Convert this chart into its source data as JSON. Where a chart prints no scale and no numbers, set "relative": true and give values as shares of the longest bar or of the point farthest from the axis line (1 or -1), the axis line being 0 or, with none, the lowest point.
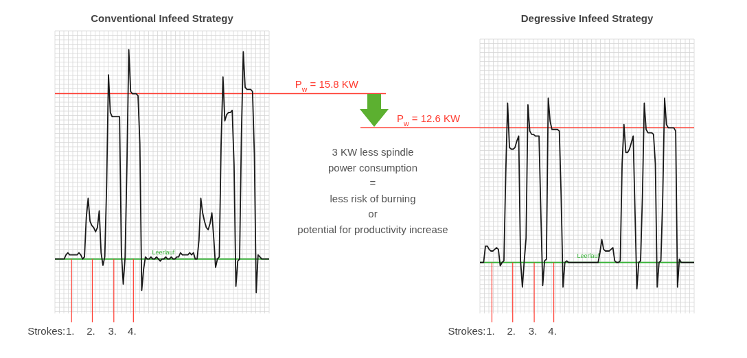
{
  "chart_data": [
    {
      "type": "line",
      "title": "Conventional Infeed Strategy",
      "relative": true,
      "tick_labels": false,
      "grid": true,
      "categories": [
        null,
        null,
        null,
        null,
        null,
        null,
        null,
        null,
        null,
        null,
        null,
        null,
        null,
        null,
        null,
        null,
        null,
        null,
        null,
        null,
        null,
        null,
        null,
        null,
        null,
        null,
        null,
        null,
        null,
        null,
        null,
        null,
        null,
        null,
        null,
        null,
        null,
        null,
        null,
        null,
        null,
        null,
        null,
        null,
        null,
        null,
        null,
        null,
        null,
        null,
        null,
        null,
        null,
        null,
        null,
        null,
        null,
        null,
        null,
        null,
        null,
        null,
        null,
        null,
        null,
        null,
        null,
        null,
        null,
        null,
        null,
        null,
        null,
        null,
        null,
        null,
        null,
        null,
        null,
        null,
        null,
        null,
        null,
        null,
        null,
        null,
        null,
        null,
        null,
        null,
        null,
        null,
        null,
        null,
        null,
        null,
        null,
        null,
        null,
        null,
        null,
        null,
        null,
        null,
        null,
        null,
        null,
        null,
        null,
        null,
        null,
        null,
        null,
        null,
        null,
        null,
        null
      ],
      "series": [
        {
          "color": "#1a1a1a",
          "values": [
            0,
            0,
            0,
            0,
            0,
            0,
            0.02,
            0.03,
            0.02,
            0.02,
            0.02,
            0.02,
            0.02,
            0.03,
            0.02,
            0,
            0.01,
            0.2,
            0.29,
            0.18,
            0.16,
            0.15,
            0.13,
            0.15,
            0.23,
            0.03,
            -0.03,
            0.01,
            0.35,
            0.88,
            0.7,
            0.68,
            0.68,
            0.68,
            0.68,
            0.68,
            0.03,
            -0.12,
            0.01,
            0.45,
            1,
            0.8,
            0.79,
            0.79,
            0.79,
            0.78,
            0.55,
            -0.15,
            -0.05,
            0.01,
            0,
            0,
            0.01,
            0,
            0,
            0.01,
            0,
            -0.01,
            0,
            0,
            0.01,
            0,
            0,
            0.01,
            0,
            0,
            0.01,
            0.01,
            0.03,
            0.02,
            0.02,
            0.02,
            0.02,
            0.03,
            0.02,
            0.03,
            0,
            0,
            0.09,
            0.29,
            0.22,
            0.18,
            0.15,
            0.14,
            0.17,
            0.22,
            0.1,
            -0.04,
            0,
            0.01,
            0.55,
            0.87,
            0.66,
            0.69,
            0.7,
            0.7,
            0.71,
            0.45,
            -0.13,
            -0.01,
            0,
            0.6,
            0.99,
            0.82,
            0.81,
            0.81,
            0.81,
            0.8,
            0.5,
            -0.16,
            0.02,
            0.01,
            0,
            0,
            0,
            0,
            0
          ]
        }
      ],
      "ref_lines": [
        {
          "axis": "y",
          "value": 0.79,
          "color": "#ff3b30"
        },
        {
          "axis": "y",
          "value": 0,
          "label": "Leerlauf",
          "color": "#3cb43c"
        }
      ],
      "annotations": [
        "Strokes:",
        "1.",
        "2.",
        "3.",
        "4.",
        "P$_{w}$ = 15.8 KW",
        "3 KW less spindle\npower consumption\n=\nless risk of burning\nor\npotential for productivity increase"
      ]
    },
    {
      "type": "line",
      "title": "Degressive Infeed Strategy",
      "relative": true,
      "tick_labels": false,
      "grid": true,
      "categories": [
        null,
        null,
        null,
        null,
        null,
        null,
        null,
        null,
        null,
        null,
        null,
        null,
        null,
        null,
        null,
        null,
        null,
        null,
        null,
        null,
        null,
        null,
        null,
        null,
        null,
        null,
        null,
        null,
        null,
        null,
        null,
        null,
        null,
        null,
        null,
        null,
        null,
        null,
        null,
        null,
        null,
        null,
        null,
        null,
        null,
        null,
        null,
        null,
        null,
        null,
        null,
        null,
        null,
        null,
        null,
        null,
        null,
        null,
        null,
        null,
        null,
        null,
        null,
        null,
        null,
        null,
        null,
        null,
        null,
        null,
        null,
        null,
        null,
        null,
        null,
        null,
        null,
        null,
        null,
        null,
        null,
        null,
        null,
        null,
        null,
        null,
        null,
        null,
        null,
        null,
        null,
        null,
        null,
        null,
        null,
        null,
        null,
        null,
        null,
        null,
        null,
        null,
        null,
        null,
        null,
        null,
        null,
        null,
        null,
        null,
        null,
        null,
        null,
        null,
        null,
        null,
        null
      ],
      "series": [
        {
          "color": "#1a1a1a",
          "values": [
            0,
            0,
            0,
            0.1,
            0.1,
            0.08,
            0.07,
            0.07,
            0.08,
            0.09,
            0.08,
            -0.02,
            0,
            0.01,
            0.55,
            0.97,
            0.7,
            0.69,
            0.69,
            0.7,
            0.74,
            0.77,
            0.01,
            -0.15,
            0.01,
            0.15,
            0.96,
            0.8,
            0.78,
            0.78,
            0.77,
            0.77,
            0.77,
            0.3,
            -0.14,
            0.01,
            0.02,
            1,
            0.86,
            0.81,
            0.81,
            0.81,
            0.81,
            0.8,
            0.4,
            -0.15,
            0,
            0.01,
            0,
            0,
            0,
            0,
            0,
            0,
            0,
            0,
            0,
            0,
            0,
            0,
            0,
            0,
            0,
            0,
            0,
            0.06,
            0.14,
            0.08,
            0.07,
            0.07,
            0.07,
            0.08,
            0.09,
            0.01,
            0,
            0,
            0.01,
            0.6,
            0.84,
            0.67,
            0.67,
            0.69,
            0.73,
            0.77,
            0.3,
            -0.16,
            0,
            0.01,
            0.4,
            0.97,
            0.81,
            0.79,
            0.79,
            0.79,
            0.78,
            0.6,
            -0.15,
            0,
            0.01,
            0.4,
            1,
            0.84,
            0.82,
            0.82,
            0.82,
            0.82,
            0.8,
            -0.15,
            0.02,
            0,
            0,
            0,
            0,
            0,
            0,
            0,
            0
          ]
        }
      ],
      "ref_lines": [
        {
          "axis": "y",
          "value": 0.82,
          "color": "#ff3b30"
        },
        {
          "axis": "y",
          "value": 0,
          "label": "Leerlauf",
          "color": "#3cb43c"
        }
      ],
      "annotations": [
        "Strokes:",
        "1.",
        "2.",
        "3.",
        "4.",
        "P$_{w}$ = 12.6 KW"
      ]
    }
  ]
}
